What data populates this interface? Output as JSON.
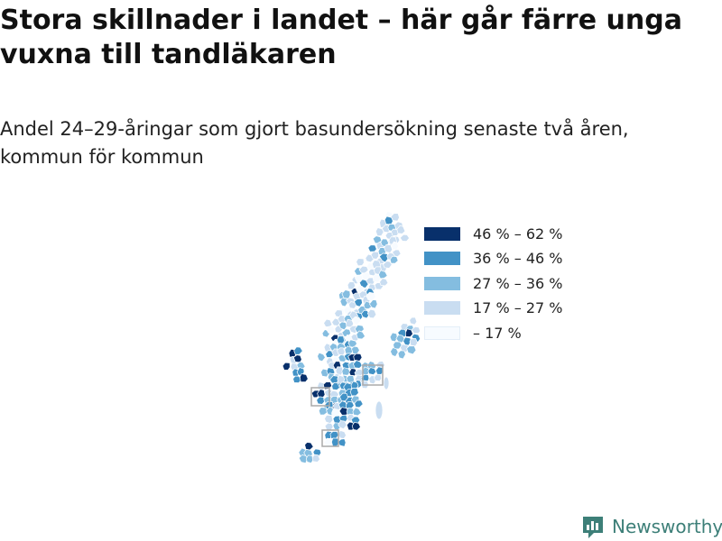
{
  "title": "Stora skillnader i landet – här går färre unga vuxna till tandläkaren",
  "subtitle": "Andel 24–29-åringar som gjort basundersökning senaste två åren, kommun för kommun",
  "legend": [
    {
      "label": "46 % – 62 %",
      "color": "#08306b"
    },
    {
      "label": "36 % – 46 %",
      "color": "#4292c6"
    },
    {
      "label": "27 % – 36 %",
      "color": "#84bde0"
    },
    {
      "label": "17 % – 27 %",
      "color": "#c9ddf1"
    },
    {
      "label": "– 17 %",
      "color": "#f7fbff"
    }
  ],
  "map": {
    "region": "Sverige",
    "level": "kommun",
    "inset_markers": 3,
    "border_color": "#ffffff",
    "inset_border_color": "#aaaaaa"
  },
  "logo": {
    "text": "Newsworthy",
    "icon": "bar-chart-icon",
    "color": "#3d7f78"
  }
}
